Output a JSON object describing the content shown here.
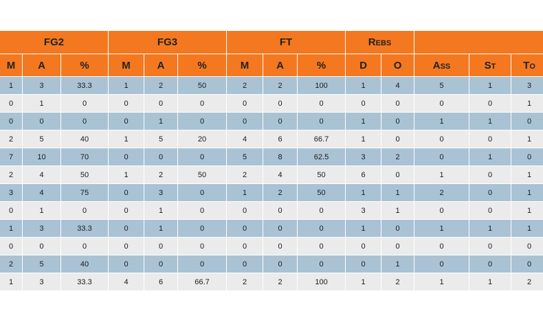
{
  "groups": [
    {
      "label": "FG2",
      "span": 3
    },
    {
      "label": "FG3",
      "span": 3
    },
    {
      "label": "FT",
      "span": 3
    },
    {
      "label": "Rebs",
      "span": 2
    },
    {
      "label": "",
      "span": 3
    }
  ],
  "columns": [
    "M",
    "A",
    "%",
    "M",
    "A",
    "%",
    "M",
    "A",
    "%",
    "D",
    "O",
    "Ass",
    "St",
    "To"
  ],
  "rows": [
    [
      "1",
      "3",
      "33.3",
      "1",
      "2",
      "50",
      "2",
      "2",
      "100",
      "1",
      "4",
      "5",
      "1",
      "3"
    ],
    [
      "0",
      "1",
      "0",
      "0",
      "0",
      "0",
      "0",
      "0",
      "0",
      "0",
      "0",
      "0",
      "0",
      "1"
    ],
    [
      "0",
      "0",
      "0",
      "0",
      "1",
      "0",
      "0",
      "0",
      "0",
      "1",
      "0",
      "1",
      "1",
      "0"
    ],
    [
      "2",
      "5",
      "40",
      "1",
      "5",
      "20",
      "4",
      "6",
      "66.7",
      "1",
      "0",
      "0",
      "0",
      "1"
    ],
    [
      "7",
      "10",
      "70",
      "0",
      "0",
      "0",
      "5",
      "8",
      "62.5",
      "3",
      "2",
      "0",
      "1",
      "0"
    ],
    [
      "2",
      "4",
      "50",
      "1",
      "2",
      "50",
      "2",
      "4",
      "50",
      "6",
      "0",
      "1",
      "0",
      "1"
    ],
    [
      "3",
      "4",
      "75",
      "0",
      "3",
      "0",
      "1",
      "2",
      "50",
      "1",
      "1",
      "2",
      "0",
      "1"
    ],
    [
      "0",
      "1",
      "0",
      "0",
      "1",
      "0",
      "0",
      "0",
      "0",
      "3",
      "1",
      "0",
      "0",
      "1"
    ],
    [
      "1",
      "3",
      "33.3",
      "0",
      "1",
      "0",
      "0",
      "0",
      "0",
      "1",
      "0",
      "1",
      "1",
      "1"
    ],
    [
      "0",
      "0",
      "0",
      "0",
      "0",
      "0",
      "0",
      "0",
      "0",
      "0",
      "0",
      "0",
      "0",
      "0"
    ],
    [
      "2",
      "5",
      "40",
      "0",
      "0",
      "0",
      "0",
      "0",
      "0",
      "0",
      "1",
      "0",
      "0",
      "0"
    ],
    [
      "1",
      "3",
      "33.3",
      "4",
      "6",
      "66.7",
      "2",
      "2",
      "100",
      "1",
      "2",
      "1",
      "1",
      "2"
    ]
  ],
  "colors": {
    "header": "#f47820",
    "row_odd": "#a9c3d5",
    "row_even": "#ebebeb"
  }
}
